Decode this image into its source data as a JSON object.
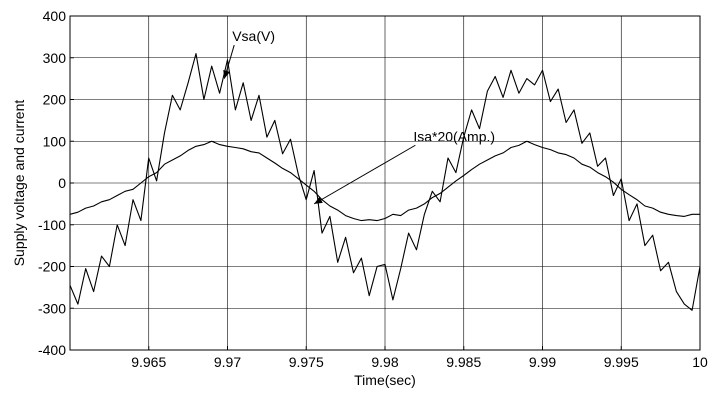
{
  "chart_data": {
    "type": "line",
    "title": "",
    "xlabel": "Time(sec)",
    "ylabel": "Supply voltage and current",
    "xlim": [
      9.96,
      10.0
    ],
    "ylim": [
      -400,
      400
    ],
    "xticks": [
      9.965,
      9.97,
      9.975,
      9.98,
      9.985,
      9.99,
      9.995,
      10
    ],
    "xtick_labels": [
      "9.965",
      "9.97",
      "9.975",
      "9.98",
      "9.985",
      "9.99",
      "9.995",
      "10"
    ],
    "yticks": [
      -400,
      -300,
      -200,
      -100,
      0,
      100,
      200,
      300,
      400
    ],
    "ytick_labels": [
      "-400",
      "-300",
      "-200",
      "-100",
      "0",
      "100",
      "200",
      "300",
      "400"
    ],
    "grid": true,
    "series": [
      {
        "name": "Vsa(V)",
        "label": "Vsa(V)",
        "color": "#000000",
        "x": [
          9.96,
          9.9605,
          9.961,
          9.9615,
          9.962,
          9.9625,
          9.963,
          9.9635,
          9.964,
          9.9645,
          9.965,
          9.9655,
          9.966,
          9.9665,
          9.967,
          9.9675,
          9.968,
          9.9685,
          9.969,
          9.9695,
          9.97,
          9.9705,
          9.971,
          9.9715,
          9.972,
          9.9725,
          9.973,
          9.9735,
          9.974,
          9.9745,
          9.975,
          9.9755,
          9.976,
          9.9765,
          9.977,
          9.9775,
          9.978,
          9.9785,
          9.979,
          9.9795,
          9.98,
          9.9805,
          9.981,
          9.9815,
          9.982,
          9.9825,
          9.983,
          9.9835,
          9.984,
          9.9845,
          9.985,
          9.9855,
          9.986,
          9.9865,
          9.987,
          9.9875,
          9.988,
          9.9885,
          9.989,
          9.9895,
          9.99,
          9.9905,
          9.991,
          9.9915,
          9.992,
          9.9925,
          9.993,
          9.9935,
          9.994,
          9.9945,
          9.995,
          9.9955,
          9.996,
          9.9965,
          9.997,
          9.9975,
          9.998,
          9.9985,
          9.999,
          9.9995,
          10.0
        ],
        "y": [
          -245,
          -290,
          -205,
          -260,
          -175,
          -200,
          -100,
          -150,
          -40,
          -90,
          60,
          5,
          120,
          210,
          175,
          240,
          310,
          200,
          280,
          215,
          295,
          175,
          240,
          150,
          210,
          110,
          150,
          70,
          105,
          20,
          -40,
          30,
          -120,
          -80,
          -190,
          -130,
          -215,
          -180,
          -270,
          -200,
          -195,
          -280,
          -205,
          -120,
          -160,
          -75,
          -20,
          -45,
          60,
          25,
          110,
          175,
          130,
          220,
          255,
          205,
          270,
          215,
          250,
          235,
          270,
          195,
          225,
          145,
          175,
          95,
          120,
          40,
          60,
          -30,
          10,
          -90,
          -50,
          -150,
          -125,
          -210,
          -190,
          -260,
          -290,
          -305,
          -200
        ]
      },
      {
        "name": "Isa*20(Amp.)",
        "label": "Isa*20(Amp.)",
        "color": "#000000",
        "x": [
          9.96,
          9.9605,
          9.961,
          9.9615,
          9.962,
          9.9625,
          9.963,
          9.9635,
          9.964,
          9.9645,
          9.965,
          9.9655,
          9.966,
          9.9665,
          9.967,
          9.9675,
          9.968,
          9.9685,
          9.969,
          9.9695,
          9.97,
          9.9705,
          9.971,
          9.9715,
          9.972,
          9.9725,
          9.973,
          9.9735,
          9.974,
          9.9745,
          9.975,
          9.9755,
          9.976,
          9.9765,
          9.977,
          9.9775,
          9.978,
          9.9785,
          9.979,
          9.9795,
          9.98,
          9.9805,
          9.981,
          9.9815,
          9.982,
          9.9825,
          9.983,
          9.9835,
          9.984,
          9.9845,
          9.985,
          9.9855,
          9.986,
          9.9865,
          9.987,
          9.9875,
          9.988,
          9.9885,
          9.989,
          9.9895,
          9.99,
          9.9905,
          9.991,
          9.9915,
          9.992,
          9.9925,
          9.993,
          9.9935,
          9.994,
          9.9945,
          9.995,
          9.9955,
          9.996,
          9.9965,
          9.997,
          9.9975,
          9.998,
          9.9985,
          9.999,
          9.9995,
          10.0
        ],
        "y": [
          -75,
          -70,
          -60,
          -55,
          -45,
          -40,
          -30,
          -20,
          -15,
          0,
          15,
          25,
          45,
          55,
          65,
          78,
          88,
          92,
          100,
          92,
          88,
          85,
          82,
          75,
          72,
          60,
          48,
          35,
          25,
          10,
          -5,
          -20,
          -40,
          -55,
          -65,
          -78,
          -85,
          -90,
          -88,
          -90,
          -85,
          -75,
          -78,
          -65,
          -60,
          -50,
          -35,
          -25,
          -10,
          5,
          18,
          32,
          45,
          55,
          65,
          72,
          85,
          90,
          100,
          92,
          85,
          80,
          72,
          68,
          60,
          45,
          38,
          25,
          15,
          2,
          -15,
          -28,
          -40,
          -55,
          -60,
          -70,
          -75,
          -78,
          -80,
          -75,
          -75
        ]
      }
    ],
    "annotations": [
      {
        "text": "Vsa(V)",
        "x": 9.9703,
        "y": 340,
        "arrow_to": [
          9.9698,
          250
        ]
      },
      {
        "text": "Isa*20(Amp.)",
        "x": 9.9818,
        "y": 100,
        "arrow_to": [
          9.9755,
          -50
        ]
      }
    ]
  }
}
